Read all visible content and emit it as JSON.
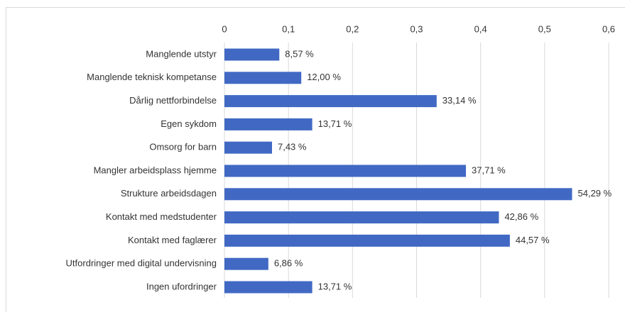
{
  "chart_data": {
    "type": "bar",
    "orientation": "horizontal",
    "categories": [
      "Manglende utstyr",
      "Manglende teknisk kompetanse",
      "Dårlig nettforbindelse",
      "Egen sykdom",
      "Omsorg for barn",
      "Mangler arbeidsplass hjemme",
      "Strukture arbeidsdagen",
      "Kontakt med medstudenter",
      "Kontakt med faglærer",
      "Utfordringer med digital undervisning",
      "Ingen ufordringer"
    ],
    "values": [
      0.0857,
      0.12,
      0.3314,
      0.1371,
      0.0743,
      0.3771,
      0.5429,
      0.4286,
      0.4457,
      0.0686,
      0.1371
    ],
    "value_labels": [
      "8,57 %",
      "12,00 %",
      "33,14 %",
      "13,71 %",
      "7,43 %",
      "37,71 %",
      "54,29 %",
      "42,86 %",
      "44,57 %",
      "6,86 %",
      "13,71 %"
    ],
    "color": "#4169c4",
    "xlim": [
      0,
      0.6
    ],
    "xticks": [
      0,
      {
        "value": 0.1,
        "label": "0,1"
      },
      {
        "value": 0.2,
        "label": "0,2"
      },
      {
        "value": 0.3,
        "label": "0,3"
      },
      {
        "value": 0.4,
        "label": "0,4"
      },
      {
        "value": 0.5,
        "label": "0,5"
      },
      {
        "value": 0.6,
        "label": "0,6"
      }
    ],
    "grid": true
  }
}
